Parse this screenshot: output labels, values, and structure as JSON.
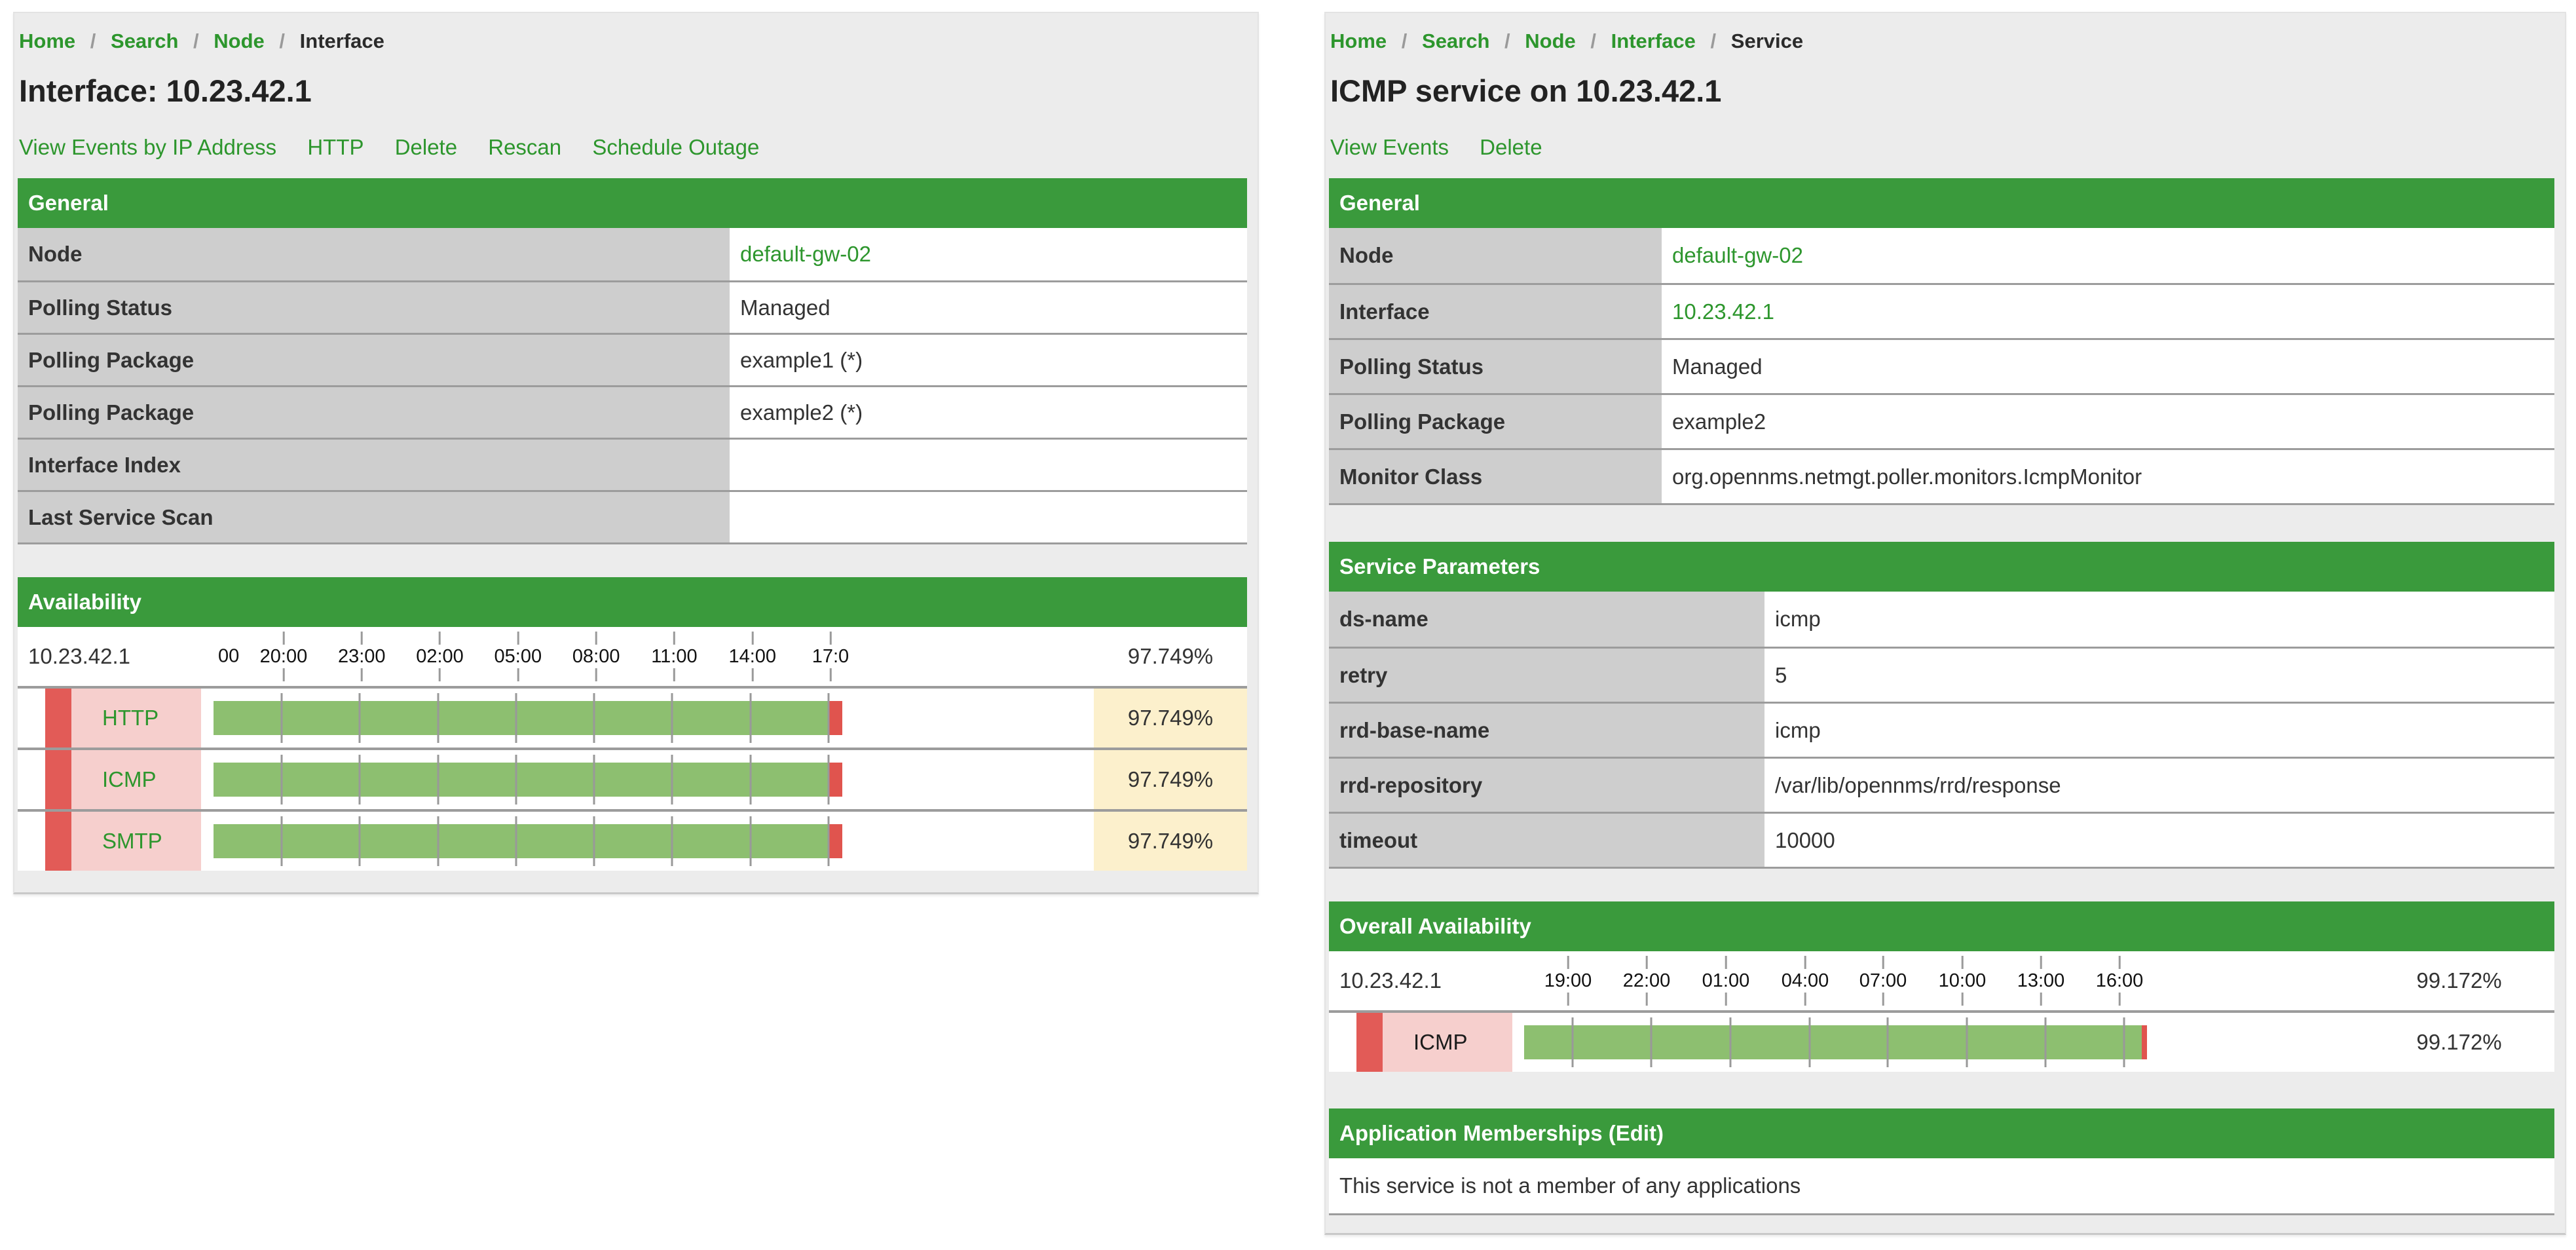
{
  "ui": {
    "breadcrumb_separator": "/"
  },
  "colors": {
    "header_green": "#3a9a3c",
    "link_green": "#2d962d",
    "label_gray": "#cecece",
    "card_gray": "#ececec",
    "bar_green": "#8dbf70",
    "bar_red": "#e0544e",
    "stripe_red": "#e25b57",
    "service_pink": "#f6cfcd",
    "percent_yellow": "#fcf0cc"
  },
  "interface_page": {
    "breadcrumb": [
      "Home",
      "Search",
      "Node",
      "Interface"
    ],
    "title": "Interface: 10.23.42.1",
    "actions": [
      "View Events by IP Address",
      "HTTP",
      "Delete",
      "Rescan",
      "Schedule Outage"
    ],
    "general": {
      "header": "General",
      "rows": [
        {
          "label": "Node",
          "value": "default-gw-02"
        },
        {
          "label": "Polling Status",
          "value": "Managed"
        },
        {
          "label": "Polling Package",
          "value": "example1 (*)"
        },
        {
          "label": "Polling Package",
          "value": "example2 (*)"
        },
        {
          "label": "Interface Index",
          "value": ""
        },
        {
          "label": "Last Service Scan",
          "value": ""
        }
      ]
    },
    "availability": {
      "header": "Availability",
      "interface_label": "10.23.42.1",
      "overall_percent": "97.749%",
      "axis_clip_start": "00",
      "axis_ticks": [
        "20:00",
        "23:00",
        "02:00",
        "05:00",
        "08:00",
        "11:00",
        "14:00",
        "17:0"
      ],
      "services": [
        {
          "name": "HTTP",
          "percent": "97.749%",
          "availability": 97.749
        },
        {
          "name": "ICMP",
          "percent": "97.749%",
          "availability": 97.749
        },
        {
          "name": "SMTP",
          "percent": "97.749%",
          "availability": 97.749
        }
      ]
    }
  },
  "service_page": {
    "breadcrumb": [
      "Home",
      "Search",
      "Node",
      "Interface",
      "Service"
    ],
    "title": "ICMP service on 10.23.42.1",
    "actions": [
      "View Events",
      "Delete"
    ],
    "general": {
      "header": "General",
      "rows": [
        {
          "label": "Node",
          "value": "default-gw-02"
        },
        {
          "label": "Interface",
          "value": "10.23.42.1"
        },
        {
          "label": "Polling Status",
          "value": "Managed"
        },
        {
          "label": "Polling Package",
          "value": "example2"
        },
        {
          "label": "Monitor Class",
          "value": "org.opennms.netmgt.poller.monitors.IcmpMonitor"
        }
      ]
    },
    "service_parameters": {
      "header": "Service Parameters",
      "rows": [
        {
          "label": "ds-name",
          "value": "icmp"
        },
        {
          "label": "retry",
          "value": "5"
        },
        {
          "label": "rrd-base-name",
          "value": "icmp"
        },
        {
          "label": "rrd-repository",
          "value": "/var/lib/opennms/rrd/response"
        },
        {
          "label": "timeout",
          "value": "10000"
        }
      ]
    },
    "overall_availability": {
      "header": "Overall Availability",
      "interface_label": "10.23.42.1",
      "overall_percent": "99.172%",
      "axis_ticks": [
        "19:00",
        "22:00",
        "01:00",
        "04:00",
        "07:00",
        "10:00",
        "13:00",
        "16:00"
      ],
      "services": [
        {
          "name": "ICMP",
          "percent": "99.172%",
          "availability": 99.172
        }
      ]
    },
    "application_memberships": {
      "header": "Application Memberships (Edit)",
      "empty_message": "This service is not a member of any applications"
    }
  }
}
